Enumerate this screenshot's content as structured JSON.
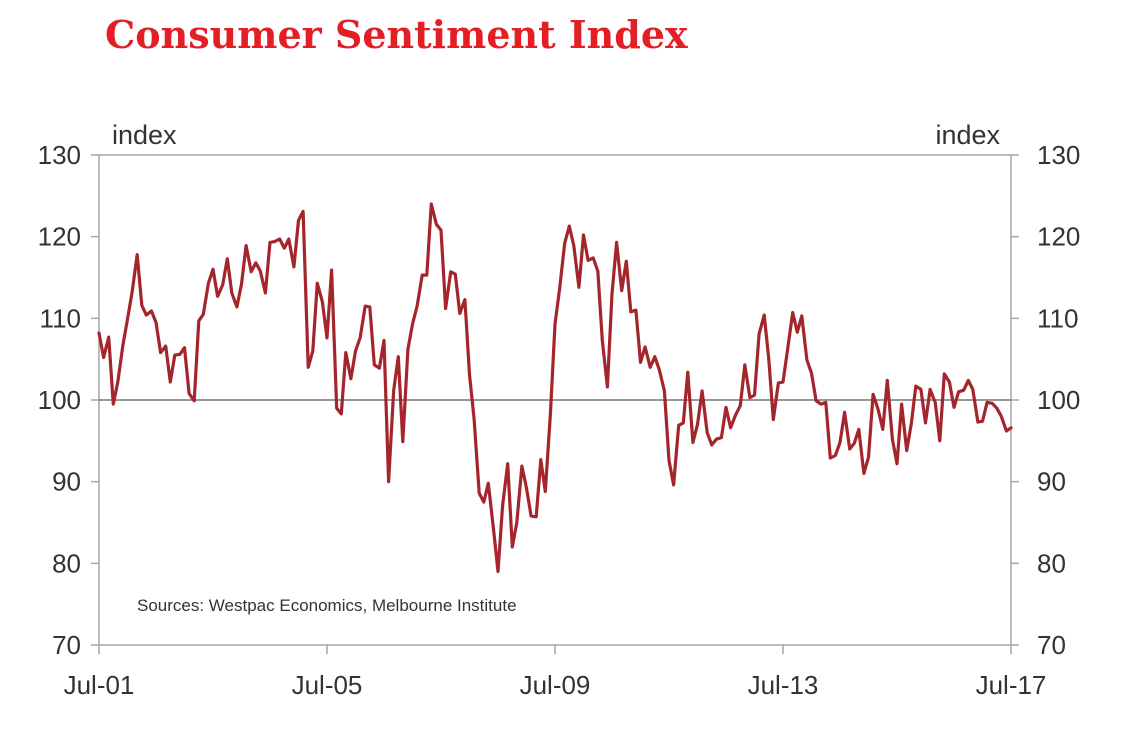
{
  "chart_data": {
    "type": "line",
    "title": "Consumer Sentiment Index",
    "left_unit": "index",
    "right_unit": "index",
    "source": "Sources: Westpac Economics, Melbourne Institute",
    "ylim": [
      70,
      130
    ],
    "yticks": [
      70,
      80,
      90,
      100,
      110,
      120,
      130
    ],
    "xlim": [
      2001.5,
      2017.5
    ],
    "xticks": [
      {
        "value": 2001.5,
        "label": "Jul-01"
      },
      {
        "value": 2005.5,
        "label": "Jul-05"
      },
      {
        "value": 2009.5,
        "label": "Jul-09"
      },
      {
        "value": 2013.5,
        "label": "Jul-13"
      },
      {
        "value": 2017.5,
        "label": "Jul-17"
      }
    ],
    "reference_line": 100,
    "line_color": "#a4262c",
    "series": [
      {
        "name": "Consumer Sentiment Index",
        "x": [
          2001.5,
          2001.58,
          2001.67,
          2001.75,
          2001.83,
          2001.92,
          2002.0,
          2002.08,
          2002.17,
          2002.25,
          2002.33,
          2002.42,
          2002.5,
          2002.58,
          2002.67,
          2002.75,
          2002.83,
          2002.92,
          2003.0,
          2003.08,
          2003.17,
          2003.25,
          2003.33,
          2003.42,
          2003.5,
          2003.58,
          2003.67,
          2003.75,
          2003.83,
          2003.92,
          2004.0,
          2004.08,
          2004.17,
          2004.25,
          2004.33,
          2004.42,
          2004.5,
          2004.58,
          2004.67,
          2004.75,
          2004.83,
          2004.92,
          2005.0,
          2005.08,
          2005.17,
          2005.25,
          2005.33,
          2005.42,
          2005.5,
          2005.58,
          2005.67,
          2005.75,
          2005.83,
          2005.92,
          2006.0,
          2006.08,
          2006.17,
          2006.25,
          2006.33,
          2006.42,
          2006.5,
          2006.58,
          2006.67,
          2006.75,
          2006.83,
          2006.92,
          2007.0,
          2007.08,
          2007.17,
          2007.25,
          2007.33,
          2007.42,
          2007.5,
          2007.58,
          2007.67,
          2007.75,
          2007.83,
          2007.92,
          2008.0,
          2008.08,
          2008.17,
          2008.25,
          2008.33,
          2008.42,
          2008.5,
          2008.58,
          2008.67,
          2008.75,
          2008.83,
          2008.92,
          2009.0,
          2009.08,
          2009.17,
          2009.25,
          2009.33,
          2009.42,
          2009.5,
          2009.58,
          2009.67,
          2009.75,
          2009.83,
          2009.92,
          2010.0,
          2010.08,
          2010.17,
          2010.25,
          2010.33,
          2010.42,
          2010.5,
          2010.58,
          2010.67,
          2010.75,
          2010.83,
          2010.92,
          2011.0,
          2011.08,
          2011.17,
          2011.25,
          2011.33,
          2011.42,
          2011.5,
          2011.58,
          2011.67,
          2011.75,
          2011.83,
          2011.92,
          2012.0,
          2012.08,
          2012.17,
          2012.25,
          2012.33,
          2012.42,
          2012.5,
          2012.58,
          2012.67,
          2012.75,
          2012.83,
          2012.92,
          2013.0,
          2013.08,
          2013.17,
          2013.25,
          2013.33,
          2013.42,
          2013.5,
          2013.58,
          2013.67,
          2013.75,
          2013.83,
          2013.92,
          2014.0,
          2014.08,
          2014.17,
          2014.25,
          2014.33,
          2014.42,
          2014.5,
          2014.58,
          2014.67,
          2014.75,
          2014.83,
          2014.92,
          2015.0,
          2015.08,
          2015.17,
          2015.25,
          2015.33,
          2015.42,
          2015.5,
          2015.58,
          2015.67,
          2015.75,
          2015.83,
          2015.92,
          2016.0,
          2016.08,
          2016.17,
          2016.25,
          2016.33,
          2016.42,
          2016.5,
          2016.58,
          2016.67,
          2016.75,
          2016.83,
          2016.92,
          2017.0,
          2017.08,
          2017.17,
          2017.25,
          2017.33,
          2017.42,
          2017.5
        ],
        "values": [
          108.2,
          105.2,
          107.7,
          99.5,
          102.2,
          106.7,
          109.9,
          113.2,
          117.8,
          111.6,
          110.4,
          110.9,
          109.5,
          105.8,
          106.6,
          102.2,
          105.5,
          105.6,
          106.4,
          100.8,
          99.9,
          109.7,
          110.5,
          114.3,
          116.0,
          112.7,
          114.1,
          117.3,
          113.1,
          111.4,
          114.2,
          118.9,
          115.7,
          116.8,
          115.8,
          113.1,
          119.3,
          119.4,
          119.7,
          118.6,
          119.7,
          116.3,
          122.0,
          123.1,
          104.0,
          106.0,
          114.3,
          112.0,
          107.6,
          115.9,
          99.0,
          98.3,
          105.8,
          102.6,
          106.0,
          107.6,
          111.5,
          111.4,
          104.3,
          103.9,
          107.3,
          90.0,
          101.2,
          105.3,
          94.9,
          106.2,
          109.3,
          111.5,
          115.3,
          115.3,
          124.0,
          121.5,
          120.8,
          111.2,
          115.7,
          115.4,
          110.6,
          112.3,
          103.1,
          97.7,
          88.6,
          87.5,
          89.8,
          84.3,
          79.0,
          87.1,
          92.2,
          82.0,
          85.0,
          91.9,
          89.2,
          85.8,
          85.7,
          92.7,
          88.8,
          98.3,
          109.3,
          113.6,
          119.2,
          121.3,
          118.9,
          113.8,
          120.2,
          117.1,
          117.4,
          115.8,
          107.3,
          101.6,
          113.0,
          119.3,
          113.4,
          117.0,
          110.8,
          111.0,
          104.6,
          106.5,
          104.0,
          105.3,
          103.7,
          101.1,
          92.6,
          89.6,
          96.9,
          97.2,
          103.4,
          94.8,
          97.0,
          101.1,
          96.0,
          94.5,
          95.2,
          95.4,
          99.1,
          96.6,
          98.2,
          99.3,
          104.3,
          100.3,
          100.6,
          108.1,
          110.4,
          105.0,
          97.6,
          102.1,
          102.2,
          106.2,
          110.7,
          108.3,
          110.3,
          104.9,
          103.3,
          99.9,
          99.5,
          99.7,
          92.9,
          93.2,
          94.8,
          98.5,
          94.0,
          94.7,
          96.4,
          91.0,
          93.0,
          100.7,
          98.8,
          96.4,
          102.4,
          95.2,
          92.2,
          99.5,
          93.8,
          97.1,
          101.7,
          101.3,
          97.2,
          101.3,
          99.7,
          95.0,
          103.2,
          102.2,
          99.1,
          101.0,
          101.2,
          102.4,
          101.3,
          97.3,
          97.4,
          99.7,
          99.6,
          99.0,
          98.0,
          96.2,
          96.6
        ]
      }
    ]
  }
}
